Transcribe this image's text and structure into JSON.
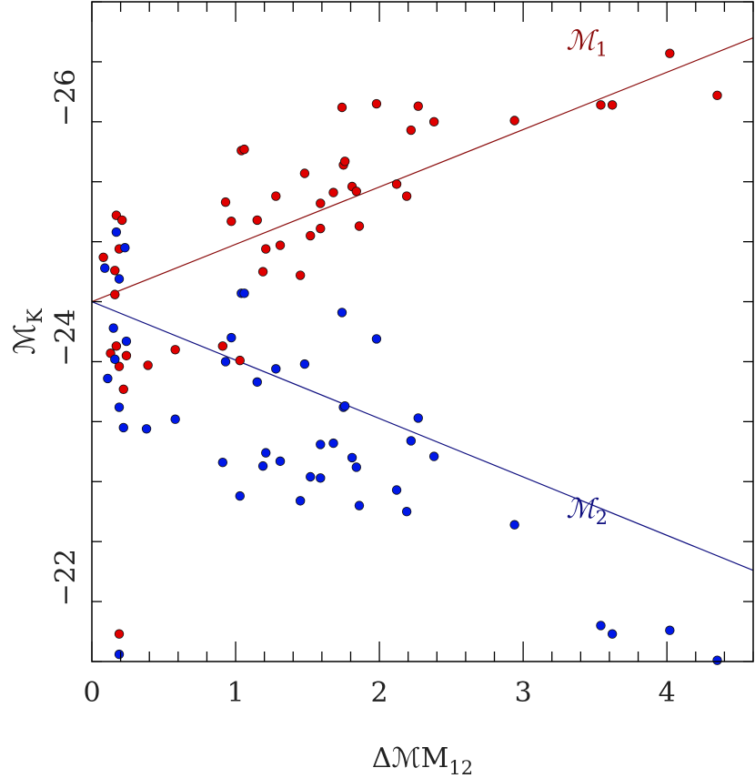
{
  "chart_data": {
    "type": "scatter",
    "title": "",
    "xlabel": "ΔM12",
    "xlabel_main": "ΔℳM",
    "xlabel_sub": "12",
    "ylabel": "MK",
    "ylabel_main": "ℳ",
    "ylabel_sub": "K",
    "xlim": [
      0,
      4.6
    ],
    "ylim": [
      -21.3,
      -26.8
    ],
    "y_inverted": true,
    "grid": false,
    "x_ticks": [
      {
        "value": 0,
        "label": "0"
      },
      {
        "value": 1,
        "label": "1"
      },
      {
        "value": 2,
        "label": "2"
      },
      {
        "value": 3,
        "label": "3"
      },
      {
        "value": 4,
        "label": "4"
      }
    ],
    "y_ticks": [
      {
        "value": -22,
        "label": "−22"
      },
      {
        "value": -24,
        "label": "−24"
      },
      {
        "value": -26,
        "label": "−26"
      }
    ],
    "series": [
      {
        "name": "M1",
        "color": "#e00000",
        "points": [
          [
            0.08,
            -24.67
          ],
          [
            0.13,
            -23.87
          ],
          [
            0.16,
            -24.56
          ],
          [
            0.17,
            -25.02
          ],
          [
            0.17,
            -23.93
          ],
          [
            0.19,
            -24.74
          ],
          [
            0.21,
            -24.98
          ],
          [
            0.19,
            -23.76
          ],
          [
            0.22,
            -23.57
          ],
          [
            0.24,
            -23.85
          ],
          [
            0.19,
            -21.53
          ],
          [
            0.16,
            -24.36
          ],
          [
            0.39,
            -23.77
          ],
          [
            0.58,
            -23.9
          ],
          [
            0.91,
            -23.93
          ],
          [
            0.93,
            -25.13
          ],
          [
            0.97,
            -24.97
          ],
          [
            1.03,
            -23.81
          ],
          [
            1.04,
            -25.56
          ],
          [
            1.06,
            -25.57
          ],
          [
            1.15,
            -24.98
          ],
          [
            1.19,
            -24.55
          ],
          [
            1.21,
            -24.74
          ],
          [
            1.28,
            -25.18
          ],
          [
            1.31,
            -24.77
          ],
          [
            1.45,
            -24.52
          ],
          [
            1.48,
            -25.37
          ],
          [
            1.52,
            -24.85
          ],
          [
            1.59,
            -24.91
          ],
          [
            1.59,
            -25.12
          ],
          [
            1.68,
            -25.21
          ],
          [
            1.74,
            -25.92
          ],
          [
            1.75,
            -25.44
          ],
          [
            1.76,
            -25.47
          ],
          [
            1.81,
            -25.26
          ],
          [
            1.84,
            -25.22
          ],
          [
            1.86,
            -24.93
          ],
          [
            1.98,
            -25.95
          ],
          [
            2.12,
            -25.28
          ],
          [
            2.19,
            -25.18
          ],
          [
            2.22,
            -25.73
          ],
          [
            2.27,
            -25.93
          ],
          [
            2.38,
            -25.8
          ],
          [
            2.94,
            -25.81
          ],
          [
            3.54,
            -25.94
          ],
          [
            3.62,
            -25.94
          ],
          [
            4.02,
            -26.37
          ],
          [
            4.35,
            -26.02
          ]
        ]
      },
      {
        "name": "M2",
        "color": "#0018e8",
        "points": [
          [
            0.09,
            -24.58
          ],
          [
            0.11,
            -23.66
          ],
          [
            0.15,
            -24.08
          ],
          [
            0.16,
            -23.82
          ],
          [
            0.17,
            -24.88
          ],
          [
            0.19,
            -24.49
          ],
          [
            0.19,
            -23.42
          ],
          [
            0.22,
            -23.25
          ],
          [
            0.23,
            -24.75
          ],
          [
            0.24,
            -23.97
          ],
          [
            0.19,
            -21.36
          ],
          [
            0.38,
            -23.24
          ],
          [
            0.58,
            -23.32
          ],
          [
            0.91,
            -22.96
          ],
          [
            0.93,
            -23.8
          ],
          [
            0.97,
            -24.0
          ],
          [
            1.03,
            -22.68
          ],
          [
            1.04,
            -24.37
          ],
          [
            1.06,
            -24.37
          ],
          [
            1.15,
            -23.63
          ],
          [
            1.19,
            -22.93
          ],
          [
            1.21,
            -23.04
          ],
          [
            1.28,
            -23.74
          ],
          [
            1.31,
            -22.97
          ],
          [
            1.45,
            -22.64
          ],
          [
            1.48,
            -23.78
          ],
          [
            1.52,
            -22.84
          ],
          [
            1.59,
            -22.83
          ],
          [
            1.59,
            -23.11
          ],
          [
            1.68,
            -23.12
          ],
          [
            1.74,
            -24.21
          ],
          [
            1.75,
            -23.42
          ],
          [
            1.76,
            -23.43
          ],
          [
            1.81,
            -23.0
          ],
          [
            1.84,
            -22.92
          ],
          [
            1.86,
            -22.6
          ],
          [
            1.98,
            -23.99
          ],
          [
            2.12,
            -22.73
          ],
          [
            2.19,
            -22.55
          ],
          [
            2.22,
            -23.14
          ],
          [
            2.27,
            -23.33
          ],
          [
            2.38,
            -23.01
          ],
          [
            2.94,
            -22.44
          ],
          [
            3.54,
            -21.6
          ],
          [
            3.62,
            -21.53
          ],
          [
            4.02,
            -21.56
          ],
          [
            4.35,
            -21.31
          ]
        ]
      }
    ],
    "fit_lines": [
      {
        "label_main": "ℳ",
        "label_sub": "1",
        "color": "#8b0d0d",
        "x": [
          0,
          4.6
        ],
        "y": [
          -24.3,
          -26.5
        ]
      },
      {
        "label_main": "ℳ",
        "label_sub": "2",
        "color": "#101080",
        "x": [
          0,
          4.6
        ],
        "y": [
          -24.3,
          -22.06
        ]
      }
    ],
    "line_label_positions_data": [
      {
        "x": 3.3,
        "y": -26.4
      },
      {
        "x": 3.3,
        "y": -22.5
      }
    ]
  }
}
